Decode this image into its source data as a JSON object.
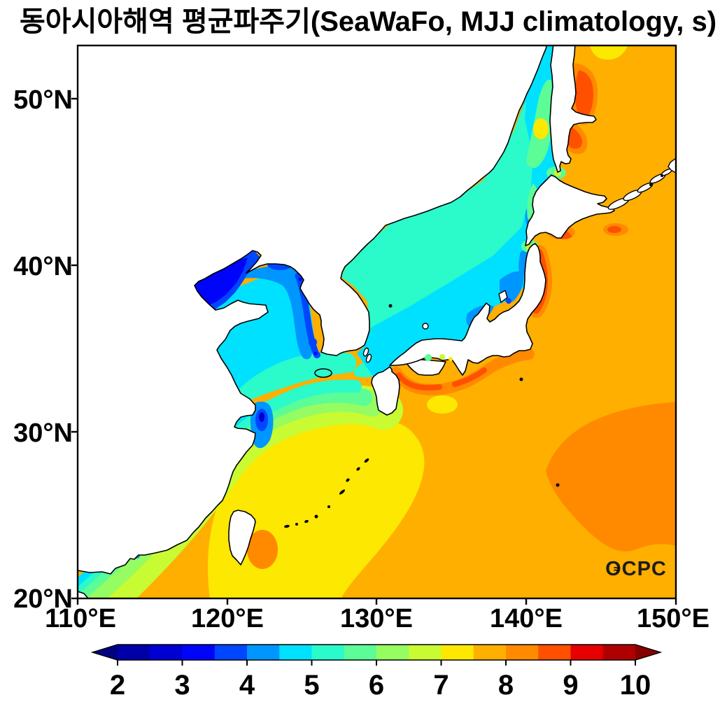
{
  "title": "동아시아해역 평균파주기(SeaWaFo, MJJ climatology, s)",
  "watermark": "OCPC",
  "axes": {
    "x_tick_labels": [
      "110°E",
      "120°E",
      "130°E",
      "140°E",
      "150°E"
    ],
    "y_tick_labels": [
      "20°N",
      "30°N",
      "40°N",
      "50°N"
    ]
  },
  "colorbar": {
    "tick_labels": [
      "2",
      "3",
      "4",
      "5",
      "6",
      "7",
      "8",
      "9",
      "10"
    ],
    "under_color": "#000080",
    "over_color": "#870000",
    "segments": [
      {
        "from": 2.0,
        "to": 2.5,
        "color": "#0000A8"
      },
      {
        "from": 2.5,
        "to": 3.0,
        "color": "#0000D2"
      },
      {
        "from": 3.0,
        "to": 3.5,
        "color": "#0005FA"
      },
      {
        "from": 3.5,
        "to": 4.0,
        "color": "#0046FF"
      },
      {
        "from": 4.0,
        "to": 4.5,
        "color": "#0096FF"
      },
      {
        "from": 4.5,
        "to": 5.0,
        "color": "#00E1FF"
      },
      {
        "from": 5.0,
        "to": 5.5,
        "color": "#2BFACA"
      },
      {
        "from": 5.5,
        "to": 6.0,
        "color": "#5CFC96"
      },
      {
        "from": 6.0,
        "to": 6.5,
        "color": "#95FC62"
      },
      {
        "from": 6.5,
        "to": 7.0,
        "color": "#C8FB32"
      },
      {
        "from": 7.0,
        "to": 7.5,
        "color": "#FCE800"
      },
      {
        "from": 7.5,
        "to": 8.0,
        "color": "#FFAF00"
      },
      {
        "from": 8.0,
        "to": 8.5,
        "color": "#FF8A00"
      },
      {
        "from": 8.5,
        "to": 9.0,
        "color": "#FF5000"
      },
      {
        "from": 9.0,
        "to": 9.5,
        "color": "#E60000"
      },
      {
        "from": 9.5,
        "to": 10.0,
        "color": "#AE0000"
      }
    ]
  },
  "chart_data": {
    "type": "heatmap",
    "title": "동아시아해역 평균파주기(SeaWaFo, MJJ climatology, s)",
    "variable": "mean wave period climatology (MJJ), SeaWaFo",
    "units": "s",
    "x_axis": {
      "range_deg_east": [
        110,
        150
      ],
      "tick_labels": [
        "110°E",
        "120°E",
        "130°E",
        "140°E",
        "150°E"
      ]
    },
    "y_axis": {
      "range_deg_north": [
        20,
        53.2
      ],
      "tick_labels": [
        "20°N",
        "30°N",
        "40°N",
        "50°N"
      ]
    },
    "colorbar": {
      "range_s": [
        2,
        10
      ],
      "level_step_s": 0.5,
      "extend": "both",
      "tick_values": [
        2,
        3,
        4,
        5,
        6,
        7,
        8,
        9,
        10
      ]
    },
    "land_color": "#ffffff",
    "coastline_color": "#000000",
    "regions": [
      {
        "name": "Bohai Sea",
        "approx_period_s": [
          3.0,
          4.0
        ]
      },
      {
        "name": "Korea Bay / Korea west coast strip",
        "approx_period_s": [
          2.5,
          4.0
        ]
      },
      {
        "name": "Yellow Sea interior",
        "approx_period_s": [
          4.0,
          5.0
        ]
      },
      {
        "name": "Hangzhou Bay",
        "approx_period_s": [
          2.5,
          4.5
        ]
      },
      {
        "name": "China coastal strip (Guangdong-Zhejiang)",
        "approx_period_s": [
          4.5,
          5.5
        ]
      },
      {
        "name": "East China Sea (banded offshore)",
        "approx_period_s": [
          5.5,
          7.5
        ]
      },
      {
        "name": "Korea Strait / Tsushima area",
        "approx_period_s": [
          5.0,
          6.0
        ]
      },
      {
        "name": "Sea of Japan center-east",
        "approx_period_s": [
          4.0,
          5.0
        ]
      },
      {
        "name": "Sea of Japan NW (Primorye side)",
        "approx_period_s": [
          5.0,
          5.5
        ]
      },
      {
        "name": "Tatar Strait mix (green/yellow/orange-red spot)",
        "approx_period_s": [
          5.5,
          9.0
        ]
      },
      {
        "name": "Sea of Okhotsk east of Sakhalin (red-orange blobs)",
        "approx_period_s": [
          8.5,
          9.0
        ]
      },
      {
        "name": "Okhotsk NE corner yellow patch",
        "approx_period_s": [
          7.0,
          7.5
        ]
      },
      {
        "name": "Open Pacific (base)",
        "approx_period_s": [
          7.5,
          8.0
        ]
      },
      {
        "name": "Pacific SE of Japan (large dark-orange blob)",
        "approx_period_s": [
          8.0,
          8.5
        ]
      },
      {
        "name": "Japan Pacific coastal strips (Sanriku, Shikoku, Kii, Kyushu E)",
        "approx_period_s": [
          8.5,
          9.0
        ]
      },
      {
        "name": "SE of Taiwan patch",
        "approx_period_s": [
          8.0,
          8.5
        ]
      }
    ]
  }
}
